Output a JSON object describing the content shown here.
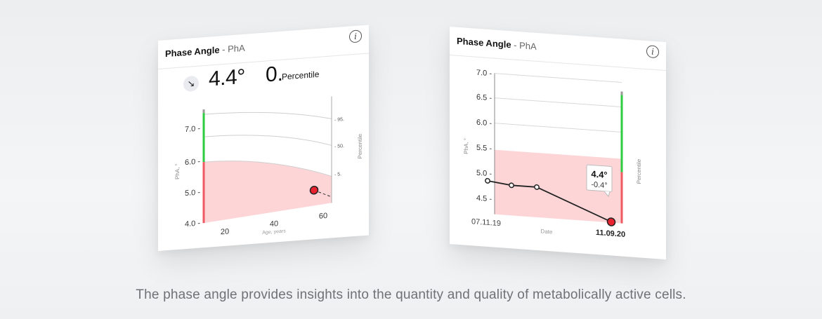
{
  "left_card": {
    "title": "Phase Angle",
    "subtitle": "- PhA",
    "info_icon": "info-icon",
    "trend_icon": "arrow-down-right-icon",
    "trend_glyph": "↘",
    "value": "4.4°",
    "percentile_value": "0.",
    "percentile_label": "Percentile",
    "y_axis_label": "PhA, °",
    "x_axis_label": "Age, years",
    "right_axis_label": "Percentile",
    "y_ticks": [
      "7.0 -",
      "6.0 -",
      "5.0 -",
      "4.0 -"
    ],
    "x_ticks": [
      "20",
      "40",
      "60"
    ],
    "percentile_ticks": [
      "- 95.",
      "- 50.",
      "- 5."
    ]
  },
  "right_card": {
    "title": "Phase Angle",
    "subtitle": "- PhA",
    "info_icon": "info-icon",
    "y_axis_label": "PhA, °",
    "x_axis_label": "Date",
    "right_axis_label": "Percentile",
    "y_ticks": [
      "7.0 -",
      "6.5 -",
      "6.0 -",
      "5.5 -",
      "5.0 -",
      "4.5 -"
    ],
    "x_start_label": "07.11.19",
    "x_end_label": "11.09.20",
    "tooltip_value": "4.4°",
    "tooltip_delta": "-0.4°"
  },
  "chart_data": [
    {
      "type": "line",
      "title": "Phase Angle - PhA",
      "xlabel": "Age, years",
      "ylabel": "PhA, °",
      "ylim": [
        4.0,
        7.0
      ],
      "x_ticks": [
        20,
        40,
        60
      ],
      "percentile_lines": [
        "95.",
        "50.",
        "5."
      ],
      "series": [
        {
          "name": "PhA",
          "x": [
            55
          ],
          "y": [
            4.4
          ]
        }
      ]
    },
    {
      "type": "line",
      "title": "Phase Angle - PhA",
      "xlabel": "Date",
      "ylabel": "PhA, °",
      "ylim": [
        4.5,
        7.0
      ],
      "x": [
        "07.11.19",
        "",
        "",
        "11.09.20"
      ],
      "series": [
        {
          "name": "PhA",
          "values": [
            4.85,
            4.68,
            4.65,
            4.4
          ]
        }
      ]
    }
  ],
  "caption": "The phase angle provides insights into the quantity and quality of metabolically active cells.",
  "colors": {
    "green": "#2ecc40",
    "red": "#ef5a62",
    "pink_area": "#fdd5d7",
    "point_red": "#e8222e"
  }
}
